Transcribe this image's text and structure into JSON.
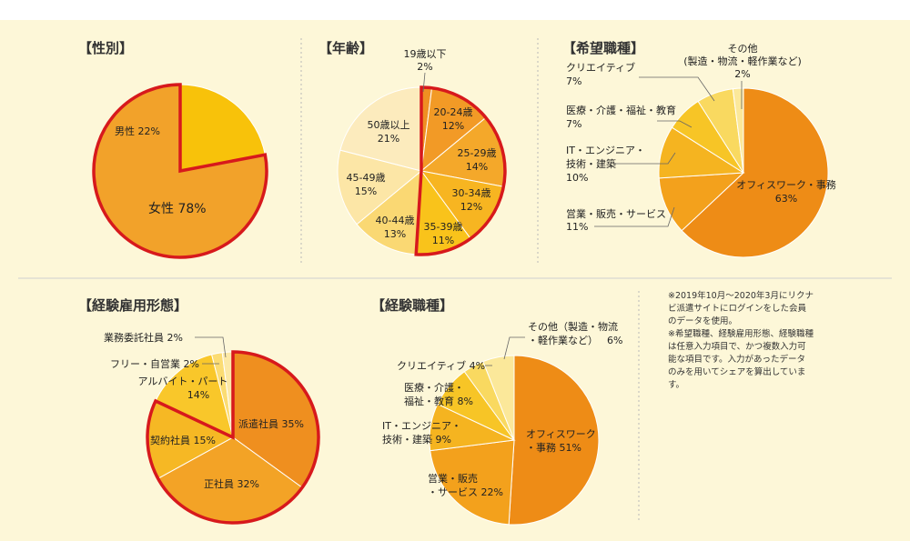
{
  "colors": {
    "highlight_outline": "#d7191c",
    "panel_background": "#fdf7d8",
    "divider": "#cfcfcf"
  },
  "note": {
    "line1": "※2019年10月〜2020年3月にリクナビ派遣サイトにログインをした会員のデータを使用。",
    "line2": "※希望職種、経験雇用形態、経験職種は任意入力項目で、かつ複数入力可能な項目です。入力があったデータのみを用いてシェアを算出しています。"
  },
  "chart_data": [
    {
      "type": "pie",
      "title": "【性別】",
      "slices": [
        {
          "label": "女性",
          "value": 78,
          "text": "78%",
          "color": "#f2a22a",
          "highlight": true
        },
        {
          "label": "男性",
          "value": 22,
          "text": "22%",
          "color": "#f8c20a",
          "highlight": false
        }
      ]
    },
    {
      "type": "pie",
      "title": "【年齢】",
      "slices": [
        {
          "label": "19歳以下",
          "value": 2,
          "text": "2%",
          "color": "#ef8f22",
          "highlight": true
        },
        {
          "label": "20-24歳",
          "value": 12,
          "text": "12%",
          "color": "#f29a26",
          "highlight": true
        },
        {
          "label": "25-29歳",
          "value": 14,
          "text": "14%",
          "color": "#f4a82a",
          "highlight": true
        },
        {
          "label": "30-34歳",
          "value": 12,
          "text": "12%",
          "color": "#f7b521",
          "highlight": true
        },
        {
          "label": "35-39歳",
          "value": 11,
          "text": "11%",
          "color": "#f9c31b",
          "highlight": true
        },
        {
          "label": "40-44歳",
          "value": 13,
          "text": "13%",
          "color": "#fad873",
          "highlight": false
        },
        {
          "label": "45-49歳",
          "value": 15,
          "text": "15%",
          "color": "#fce6a6",
          "highlight": false
        },
        {
          "label": "50歳以上",
          "value": 21,
          "text": "21%",
          "color": "#fcebbd",
          "highlight": false
        }
      ]
    },
    {
      "type": "pie",
      "title": "【希望職種】",
      "slices": [
        {
          "label": "オフィスワーク・事務",
          "value": 63,
          "text": "63%",
          "color": "#ee8c16",
          "highlight": false
        },
        {
          "label": "営業・販売・サービス",
          "value": 11,
          "text": "11%",
          "color": "#f3a11c",
          "highlight": false
        },
        {
          "label": "IT・エンジニア・技術・建築",
          "value": 10,
          "text": "10%",
          "color": "#f5b420",
          "highlight": false
        },
        {
          "label": "医療・介護・福祉・教育",
          "value": 7,
          "text": "7%",
          "color": "#f7c526",
          "highlight": false
        },
        {
          "label": "クリエイティブ",
          "value": 7,
          "text": "7%",
          "color": "#f9d960",
          "highlight": false
        },
        {
          "label": "その他（製造・物流・軽作業など）",
          "value": 2,
          "text": "2%",
          "color": "#fbe89a",
          "highlight": false
        }
      ]
    },
    {
      "type": "pie",
      "title": "【経験雇用形態】",
      "slices": [
        {
          "label": "派遣社員",
          "value": 35,
          "text": "35%",
          "color": "#ef8f1f",
          "highlight": true
        },
        {
          "label": "正社員",
          "value": 32,
          "text": "32%",
          "color": "#f3a326",
          "highlight": true
        },
        {
          "label": "契約社員",
          "value": 15,
          "text": "15%",
          "color": "#f6b824",
          "highlight": true
        },
        {
          "label": "アルバイト・パート",
          "value": 14,
          "text": "14%",
          "color": "#f9c72a",
          "highlight": false
        },
        {
          "label": "フリー・自営業",
          "value": 2,
          "text": "2%",
          "color": "#fbdc73",
          "highlight": false
        },
        {
          "label": "業務委託社員",
          "value": 2,
          "text": "2%",
          "color": "#fce9a6",
          "highlight": false
        }
      ]
    },
    {
      "type": "pie",
      "title": "【経験職種】",
      "slices": [
        {
          "label": "オフィスワーク・事務",
          "value": 51,
          "text": "51%",
          "color": "#ee8c16",
          "highlight": false
        },
        {
          "label": "営業・販売・サービス",
          "value": 22,
          "text": "22%",
          "color": "#f3a11c",
          "highlight": false
        },
        {
          "label": "IT・エンジニア・技術・建築",
          "value": 9,
          "text": "9%",
          "color": "#f5b420",
          "highlight": false
        },
        {
          "label": "医療・介護・福祉・教育",
          "value": 8,
          "text": "8%",
          "color": "#f7c526",
          "highlight": false
        },
        {
          "label": "クリエイティブ",
          "value": 4,
          "text": "4%",
          "color": "#f9d960",
          "highlight": false
        },
        {
          "label": "その他（製造・物流・軽作業など）",
          "value": 6,
          "text": "6%",
          "color": "#fbe89a",
          "highlight": false
        }
      ]
    }
  ]
}
